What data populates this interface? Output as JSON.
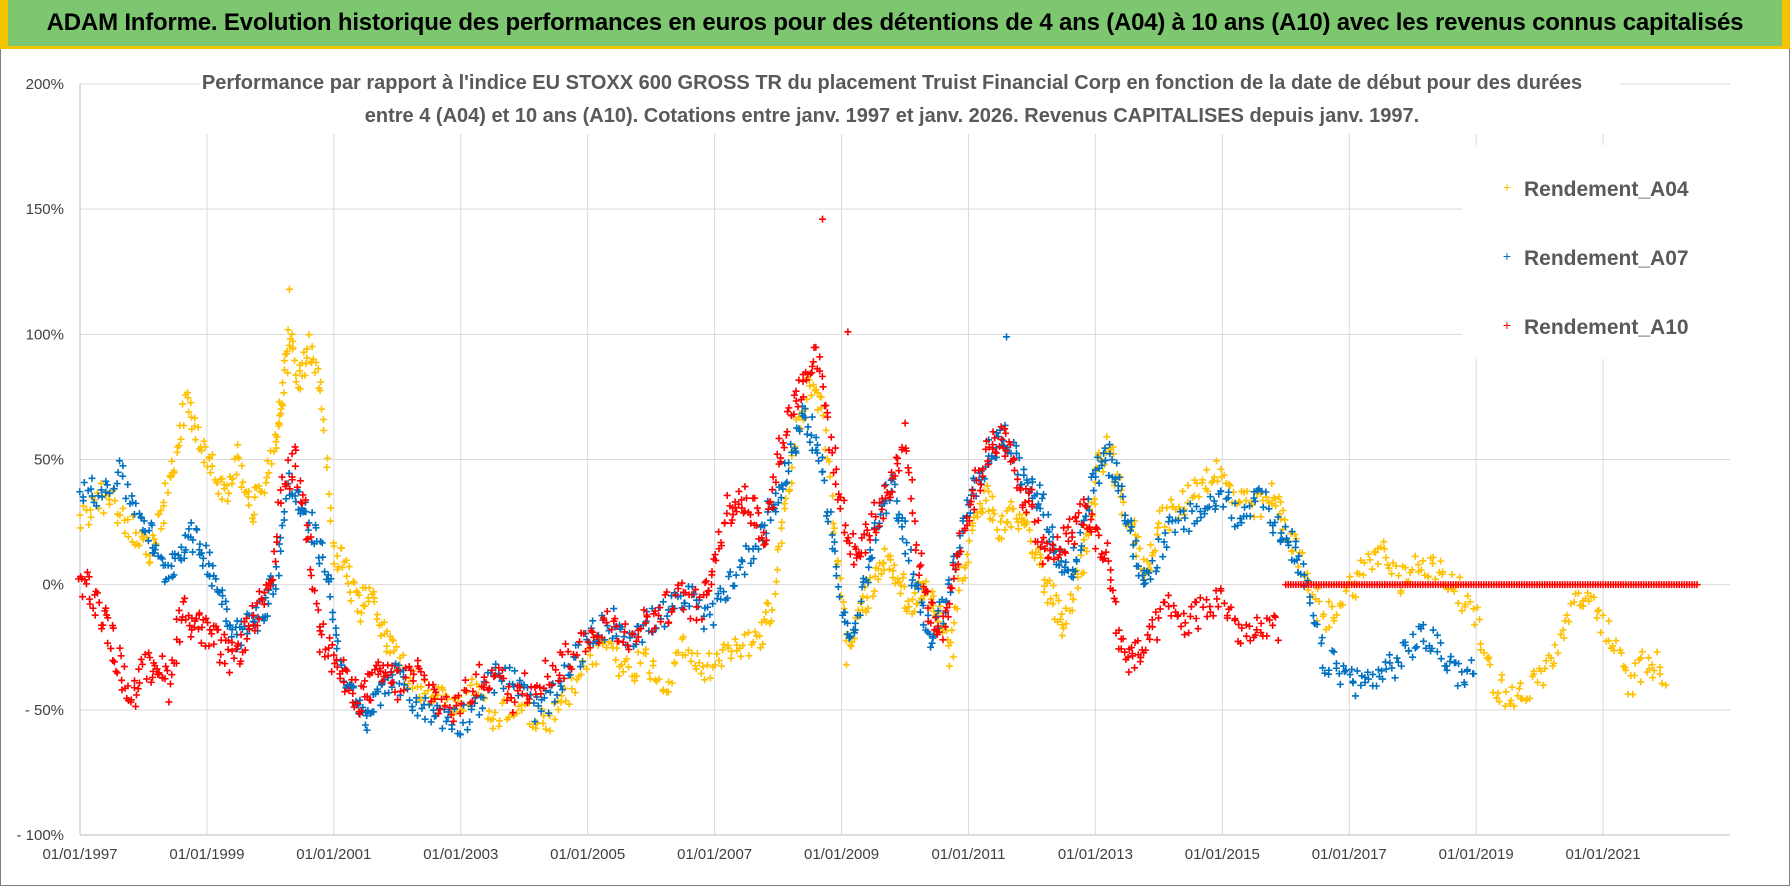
{
  "banner": {
    "title": "ADAM Informe. Evolution historique des performances en euros pour des détentions de 4 ans (A04) à 10 ans (A10) avec les revenus connus capitalisés"
  },
  "chart_data": {
    "type": "scatter",
    "title_line1": "Performance par rapport à l'indice EU STOXX 600 GROSS TR  du placement Truist Financial Corp en fonction de la date de début pour des durées",
    "title_line2": "entre 4 (A04) et 10 ans (A10).  Cotations entre janv. 1997 et janv. 2026. Revenus CAPITALISES  depuis janv. 1997.",
    "xlabel": "",
    "ylabel": "",
    "xlim": [
      1997.0,
      2023.0
    ],
    "ylim": [
      -100,
      200
    ],
    "y_ticks": [
      200,
      150,
      100,
      50,
      0,
      -50,
      -100
    ],
    "y_tick_labels": [
      "200%",
      "150%",
      "100%",
      "50%",
      "0%",
      "- 50%",
      "- 100%"
    ],
    "x_ticks": [
      1997,
      1999,
      2001,
      2003,
      2005,
      2007,
      2009,
      2011,
      2013,
      2015,
      2017,
      2019,
      2021
    ],
    "x_tick_labels": [
      "01/01/1997",
      "01/01/1999",
      "01/01/2001",
      "01/01/2003",
      "01/01/2005",
      "01/01/2007",
      "01/01/2009",
      "01/01/2011",
      "01/01/2013",
      "01/01/2015",
      "01/01/2017",
      "01/01/2019",
      "01/01/2021"
    ],
    "grid": true,
    "legend_position": "top-right",
    "series": [
      {
        "name": "Rendement_A04",
        "color": "#ffc000",
        "x": [
          1997.0,
          1997.3,
          1997.6,
          1997.9,
          1998.1,
          1998.3,
          1998.5,
          1998.7,
          1998.9,
          1999.1,
          1999.3,
          1999.5,
          1999.7,
          1999.9,
          2000.1,
          2000.2,
          2000.3,
          2000.45,
          2000.6,
          2000.8,
          2001.0,
          2001.2,
          2001.4,
          2001.6,
          2001.8,
          2002.0,
          2002.3,
          2002.6,
          2002.9,
          2003.2,
          2003.5,
          2003.8,
          2004.1,
          2004.4,
          2004.7,
          2005.0,
          2005.3,
          2005.6,
          2005.9,
          2006.2,
          2006.5,
          2006.8,
          2007.1,
          2007.4,
          2007.7,
          2007.9,
          2008.1,
          2008.3,
          2008.5,
          2008.7,
          2008.9,
          2009.1,
          2009.3,
          2009.5,
          2009.7,
          2009.9,
          2010.1,
          2010.3,
          2010.5,
          2010.7,
          2010.9,
          2011.1,
          2011.3,
          2011.5,
          2011.7,
          2011.9,
          2012.1,
          2012.3,
          2012.5,
          2012.7,
          2012.9,
          2013.0,
          2013.2,
          2013.4,
          2013.6,
          2013.8,
          2014.0,
          2014.3,
          2014.6,
          2014.9,
          2015.2,
          2015.5,
          2015.8,
          2016.0,
          2016.3,
          2016.6,
          2016.9,
          2017.2,
          2017.5,
          2017.8,
          2018.1,
          2018.4,
          2018.7,
          2019.0,
          2019.3,
          2019.6,
          2019.9,
          2020.2,
          2020.5,
          2020.8,
          2021.1,
          2021.4,
          2021.7,
          2022.0
        ],
        "y": [
          25,
          35,
          30,
          20,
          10,
          30,
          50,
          75,
          55,
          45,
          35,
          50,
          30,
          40,
          60,
          75,
          100,
          80,
          95,
          75,
          15,
          5,
          -10,
          0,
          -20,
          -30,
          -40,
          -45,
          -50,
          -40,
          -55,
          -48,
          -52,
          -55,
          -45,
          -30,
          -20,
          -35,
          -30,
          -40,
          -25,
          -35,
          -30,
          -25,
          -20,
          -10,
          30,
          60,
          80,
          70,
          20,
          -30,
          -10,
          0,
          10,
          5,
          -10,
          0,
          -10,
          -30,
          5,
          25,
          35,
          20,
          30,
          25,
          10,
          -5,
          -15,
          0,
          20,
          45,
          55,
          35,
          20,
          5,
          25,
          30,
          40,
          45,
          35,
          30,
          35,
          25,
          5,
          -15,
          -5,
          5,
          15,
          0,
          10,
          5,
          0,
          -15,
          -40,
          -45,
          -40,
          -30,
          -10,
          -5,
          -20,
          -40,
          -30,
          -35
        ],
        "spread": 6
      },
      {
        "name": "Rendement_A07",
        "color": "#0070c0",
        "x": [
          1997.0,
          1997.3,
          1997.6,
          1997.9,
          1998.1,
          1998.3,
          1998.5,
          1998.7,
          1998.9,
          1999.1,
          1999.3,
          1999.5,
          1999.7,
          1999.9,
          2000.1,
          2000.3,
          2000.5,
          2000.7,
          2000.9,
          2001.1,
          2001.3,
          2001.5,
          2001.7,
          2001.9,
          2002.1,
          2002.4,
          2002.7,
          2003.0,
          2003.3,
          2003.6,
          2003.9,
          2004.2,
          2004.5,
          2004.8,
          2005.1,
          2005.4,
          2005.7,
          2006.0,
          2006.3,
          2006.6,
          2006.9,
          2007.2,
          2007.5,
          2007.8,
          2008.0,
          2008.2,
          2008.4,
          2008.6,
          2008.8,
          2009.0,
          2009.2,
          2009.4,
          2009.6,
          2009.8,
          2010.0,
          2010.2,
          2010.4,
          2010.6,
          2010.8,
          2011.0,
          2011.2,
          2011.4,
          2011.6,
          2011.8,
          2012.0,
          2012.2,
          2012.4,
          2012.6,
          2012.8,
          2013.0,
          2013.2,
          2013.4,
          2013.6,
          2013.8,
          2014.1,
          2014.4,
          2014.7,
          2015.0,
          2015.3,
          2015.6,
          2015.9,
          2016.1,
          2016.3,
          2016.6,
          2016.9,
          2017.2,
          2017.5,
          2017.8,
          2018.1,
          2018.4,
          2018.7,
          2019.0
        ],
        "y": [
          40,
          35,
          45,
          30,
          20,
          5,
          10,
          20,
          15,
          5,
          -10,
          -20,
          -15,
          -10,
          5,
          40,
          30,
          20,
          5,
          -30,
          -45,
          -55,
          -45,
          -35,
          -40,
          -50,
          -52,
          -55,
          -45,
          -35,
          -40,
          -50,
          -45,
          -30,
          -20,
          -15,
          -20,
          -15,
          -10,
          -5,
          -15,
          0,
          10,
          25,
          35,
          50,
          70,
          55,
          30,
          -10,
          -20,
          5,
          25,
          40,
          20,
          -5,
          -20,
          -10,
          10,
          30,
          45,
          55,
          60,
          45,
          40,
          30,
          10,
          5,
          20,
          45,
          50,
          40,
          15,
          0,
          20,
          25,
          30,
          35,
          25,
          40,
          20,
          15,
          0,
          -30,
          -35,
          -40,
          -35,
          -30,
          -20,
          -25,
          -35,
          -35
        ],
        "spread": 6
      },
      {
        "name": "Rendement_A10",
        "color": "#ff0000",
        "x": [
          1997.0,
          1997.2,
          1997.4,
          1997.6,
          1997.8,
          1998.0,
          1998.2,
          1998.4,
          1998.6,
          1998.8,
          1999.0,
          1999.2,
          1999.4,
          1999.6,
          1999.8,
          2000.0,
          2000.2,
          2000.4,
          2000.6,
          2000.8,
          2001.0,
          2001.2,
          2001.4,
          2001.6,
          2001.8,
          2002.0,
          2002.3,
          2002.6,
          2002.9,
          2003.2,
          2003.5,
          2003.8,
          2004.1,
          2004.4,
          2004.7,
          2005.0,
          2005.3,
          2005.6,
          2005.9,
          2006.2,
          2006.5,
          2006.8,
          2007.0,
          2007.2,
          2007.4,
          2007.6,
          2007.8,
          2008.0,
          2008.2,
          2008.4,
          2008.6,
          2008.8,
          2009.0,
          2009.2,
          2009.4,
          2009.6,
          2009.8,
          2010.0,
          2010.2,
          2010.4,
          2010.6,
          2010.8,
          2011.0,
          2011.2,
          2011.4,
          2011.6,
          2011.8,
          2012.0,
          2012.2,
          2012.4,
          2012.6,
          2012.8,
          2013.0,
          2013.2,
          2013.4,
          2013.6,
          2013.8,
          2014.1,
          2014.4,
          2014.7,
          2015.0,
          2015.3,
          2015.6,
          2015.9
        ],
        "y": [
          5,
          -5,
          -15,
          -30,
          -45,
          -35,
          -30,
          -40,
          -10,
          -15,
          -20,
          -25,
          -30,
          -20,
          -10,
          -5,
          40,
          50,
          20,
          -20,
          -30,
          -40,
          -45,
          -40,
          -35,
          -40,
          -35,
          -45,
          -50,
          -40,
          -35,
          -45,
          -40,
          -35,
          -30,
          -20,
          -15,
          -20,
          -15,
          -10,
          -5,
          -10,
          10,
          30,
          35,
          30,
          20,
          50,
          70,
          80,
          95,
          60,
          30,
          10,
          20,
          30,
          40,
          60,
          10,
          -10,
          -20,
          10,
          30,
          45,
          60,
          55,
          40,
          30,
          10,
          15,
          20,
          30,
          20,
          10,
          -25,
          -30,
          -25,
          -10,
          -15,
          -10,
          -5,
          -20,
          -20,
          -15
        ],
        "spread": 7
      }
    ],
    "flat_segment": {
      "series": "Rendement_A10",
      "x_start": 2016.0,
      "x_end": 2022.5,
      "value": 0
    },
    "peaks": [
      {
        "series": "Rendement_A10",
        "x": 2008.7,
        "y": 146
      },
      {
        "series": "Rendement_A04",
        "x": 2000.3,
        "y": 118
      },
      {
        "series": "Rendement_A07",
        "x": 2011.6,
        "y": 99
      },
      {
        "series": "Rendement_A10",
        "x": 2009.1,
        "y": 101
      }
    ]
  }
}
